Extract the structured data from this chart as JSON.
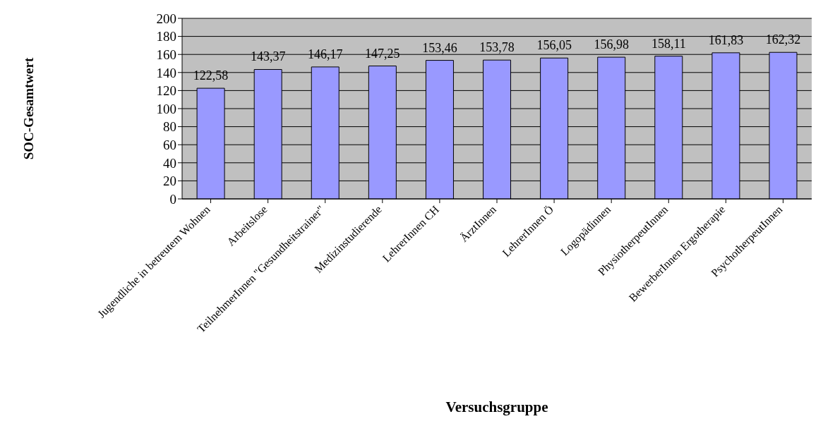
{
  "chart_data": {
    "type": "bar",
    "xlabel": "Versuchsgruppe",
    "ylabel": "SOC-Gesamtwert",
    "categories": [
      "Jugendliche in betreutem Wohnen",
      "Arbeitslose",
      "TeilnehmerInnen \"Gesundheitstrainer\"",
      "Medizinstudierende",
      "LehrerInnen CH",
      "ÄrztInnen",
      "LehrerInnen Ö",
      "Logopädinnen",
      "PhysiotherpeutInnen",
      "BewerberInnen Ergotherapie",
      "PsychotherpeutInnen"
    ],
    "values": [
      122.58,
      143.37,
      146.17,
      147.25,
      153.46,
      153.78,
      156.05,
      156.98,
      158.11,
      161.83,
      162.32
    ],
    "value_labels": [
      "122,58",
      "143,37",
      "146,17",
      "147,25",
      "153,46",
      "153,78",
      "156,05",
      "156,98",
      "158,11",
      "161,83",
      "162,32"
    ],
    "color": "#9999ff",
    "ylim": [
      0,
      200
    ],
    "yticks": [
      0,
      20,
      40,
      60,
      80,
      100,
      120,
      140,
      160,
      180,
      200
    ],
    "grid": "y"
  }
}
